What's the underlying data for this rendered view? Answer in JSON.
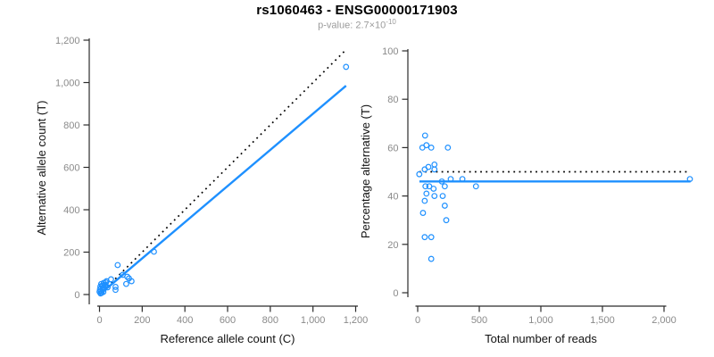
{
  "header": {
    "title": "rs1060463 - ENSG00000171903",
    "subtitle_prefix": "p-value: 2.7×10",
    "subtitle_exponent": "-10"
  },
  "colors": {
    "point": "#1E90FF",
    "fit_line": "#1E90FF",
    "identity_line": "#000000",
    "axis": "#2b2b2b",
    "tick_label": "#8a8a8a",
    "axis_label": "#111111",
    "subtitle": "#9b9b9b",
    "background": "#ffffff"
  },
  "chart_data": [
    {
      "type": "scatter",
      "panel": "left",
      "xlabel": "Reference allele count (C)",
      "ylabel": "Alternative allele count (T)",
      "xlim": [
        0,
        1200
      ],
      "ylim": [
        0,
        1200
      ],
      "grid": false,
      "legend": null,
      "xticks": {
        "values": [
          0,
          200,
          400,
          600,
          800,
          1000,
          1200
        ],
        "labels": [
          "0",
          "200",
          "400",
          "600",
          "800",
          "1,000",
          "1,200"
        ]
      },
      "yticks": {
        "values": [
          0,
          200,
          400,
          600,
          800,
          1000,
          1200
        ],
        "labels": [
          "0",
          "200",
          "400",
          "600",
          "800",
          "1,000",
          "1,200"
        ]
      },
      "points": [
        [
          1155,
          1074
        ],
        [
          255,
          202
        ],
        [
          85,
          139
        ],
        [
          109,
          93
        ],
        [
          130,
          84
        ],
        [
          138,
          76
        ],
        [
          150,
          63
        ],
        [
          125,
          50
        ],
        [
          54,
          72
        ],
        [
          33,
          63
        ],
        [
          75,
          36
        ],
        [
          75,
          22
        ],
        [
          38,
          34
        ],
        [
          45,
          50
        ],
        [
          30,
          57
        ],
        [
          25,
          45
        ],
        [
          22,
          28
        ],
        [
          20,
          55
        ],
        [
          17,
          42
        ],
        [
          15,
          30
        ],
        [
          13,
          21
        ],
        [
          12,
          42
        ],
        [
          10,
          8
        ],
        [
          8,
          50
        ],
        [
          6,
          18
        ],
        [
          5,
          5
        ],
        [
          4,
          38
        ],
        [
          2,
          25
        ],
        [
          18,
          12
        ],
        [
          0,
          13
        ]
      ],
      "lines": [
        {
          "name": "identity-line",
          "style": "dotted",
          "x": [
            0,
            1155
          ],
          "y": [
            0,
            1155
          ]
        },
        {
          "name": "fit-line",
          "style": "solid",
          "x": [
            0,
            1155
          ],
          "y": [
            0,
            985
          ]
        }
      ]
    },
    {
      "type": "scatter",
      "panel": "right",
      "xlabel": "Total number of reads",
      "ylabel": "Percentage alternative (T)",
      "xlim": [
        0,
        2200
      ],
      "ylim": [
        0,
        100
      ],
      "grid": false,
      "legend": null,
      "xticks": {
        "values": [
          0,
          500,
          1000,
          1500,
          2000
        ],
        "labels": [
          "0",
          "500",
          "1,000",
          "1,500",
          "2,000"
        ]
      },
      "yticks": {
        "values": [
          0,
          20,
          40,
          60,
          80,
          100
        ],
        "labels": [
          "0",
          "20",
          "40",
          "60",
          "80",
          "100"
        ]
      },
      "points": [
        [
          60,
          65
        ],
        [
          38,
          60
        ],
        [
          71,
          61
        ],
        [
          110,
          60
        ],
        [
          245,
          60
        ],
        [
          13,
          49
        ],
        [
          57,
          51
        ],
        [
          87,
          52
        ],
        [
          136,
          53
        ],
        [
          136,
          51
        ],
        [
          196,
          46
        ],
        [
          268,
          47
        ],
        [
          363,
          47
        ],
        [
          63,
          44
        ],
        [
          94,
          44
        ],
        [
          129,
          43
        ],
        [
          220,
          44
        ],
        [
          473,
          44
        ],
        [
          71,
          41
        ],
        [
          136,
          40
        ],
        [
          57,
          38
        ],
        [
          203,
          40
        ],
        [
          220,
          36
        ],
        [
          43,
          33
        ],
        [
          232,
          30
        ],
        [
          57,
          23
        ],
        [
          110,
          23
        ],
        [
          110,
          14
        ],
        [
          2210,
          47
        ]
      ],
      "lines": [
        {
          "name": "identity-line",
          "style": "dotted",
          "x": [
            14,
            2211
          ],
          "y": [
            50,
            50
          ]
        },
        {
          "name": "fit-line",
          "style": "solid",
          "x": [
            14,
            2215
          ],
          "y": [
            46,
            46
          ]
        }
      ]
    }
  ]
}
